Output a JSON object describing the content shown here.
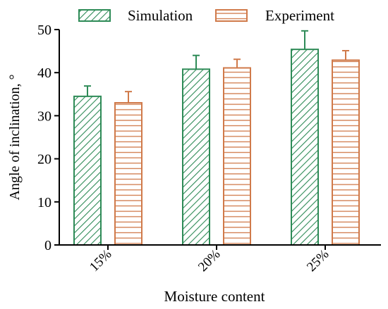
{
  "chart_data": {
    "type": "bar",
    "title": "",
    "xlabel": "Moisture content",
    "ylabel": "Angle of inclination, °",
    "categories": [
      "15%",
      "20%",
      "25%"
    ],
    "ylim": [
      0,
      50
    ],
    "yticks": [
      0,
      10,
      20,
      30,
      40,
      50
    ],
    "grid": false,
    "legend_position": "top",
    "series": [
      {
        "name": "Simulation",
        "values": [
          34.5,
          40.8,
          45.4
        ],
        "errors": [
          2.4,
          3.2,
          4.3
        ],
        "color": "#2e8b57",
        "pattern": "diagonal-hatch"
      },
      {
        "name": "Experiment",
        "values": [
          33.0,
          41.1,
          42.9
        ],
        "errors": [
          2.6,
          2.0,
          2.2
        ],
        "color": "#d07a4a",
        "pattern": "horizontal-hatch"
      }
    ]
  }
}
